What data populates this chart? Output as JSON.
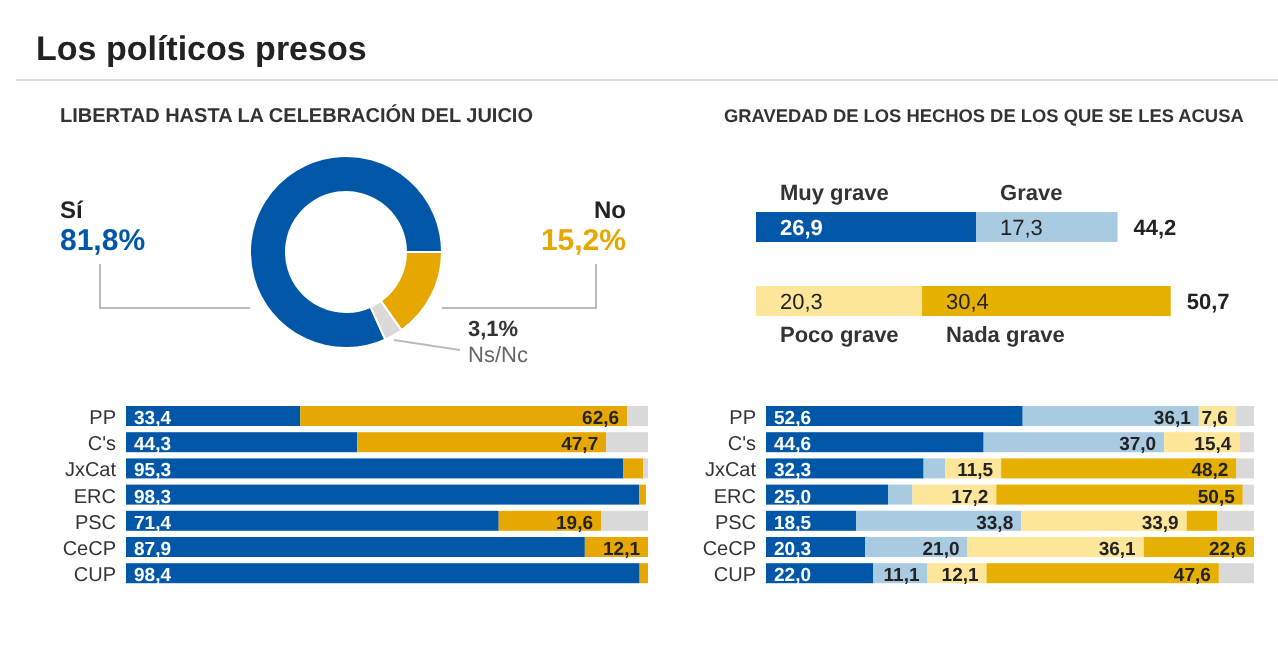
{
  "chart_data": [
    {
      "type": "donut",
      "title": "Los políticos presos",
      "subtitle": "LIBERTAD HASTA LA CELEBRACIÓN DEL JUICIO",
      "categories": [
        "Sí",
        "No",
        "Ns/Nc"
      ],
      "values": [
        81.8,
        15.2,
        3.1
      ],
      "colors": [
        "#0057a8",
        "#e6a800",
        "#d9d9d9"
      ],
      "value_labels": [
        "81,8%",
        "15,2%",
        "3,1%"
      ]
    },
    {
      "type": "bar",
      "orientation": "horizontal",
      "stacked": true,
      "categories": [
        "PP",
        "C's",
        "JxCat",
        "ERC",
        "PSC",
        "CeCP",
        "CUP"
      ],
      "series": [
        {
          "color": "#0057a8",
          "values": [
            33.4,
            44.3,
            95.3,
            98.3,
            71.4,
            87.9,
            98.4
          ],
          "value_labels": [
            "33,4",
            "44,3",
            "95,3",
            "98,3",
            "71,4",
            "87,9",
            "98,4"
          ]
        },
        {
          "color": "#e6a800",
          "values": [
            62.6,
            47.7,
            3.8,
            1.3,
            19.6,
            12.1,
            1.6
          ],
          "value_labels": [
            "62,6",
            "47,7",
            null,
            null,
            "19,6",
            "12,1",
            null
          ]
        },
        {
          "color": "#d9d9d9",
          "values": [
            4.0,
            8.0,
            0.9,
            null,
            9.0,
            0,
            0
          ]
        }
      ]
    },
    {
      "type": "bar",
      "orientation": "horizontal",
      "stacked": true,
      "subtitle": "GRAVEDAD DE LOS HECHOS DE LOS QUE SE LES ACUSA",
      "categories": [
        null,
        null
      ],
      "totals": [
        "44,2",
        "50,7"
      ],
      "series": [
        {
          "name": "Muy grave",
          "color": "#0057a8",
          "values": [
            26.9,
            null
          ],
          "value_labels": [
            "26,9",
            null
          ]
        },
        {
          "name": "Grave",
          "color": "#a8cbe2",
          "values": [
            17.3,
            null
          ],
          "value_labels": [
            "17,3",
            null
          ]
        },
        {
          "name": "Poco grave",
          "color": "#fde69a",
          "values": [
            null,
            20.3
          ],
          "value_labels": [
            null,
            "20,3"
          ]
        },
        {
          "name": "Nada grave",
          "color": "#e6b000",
          "values": [
            null,
            30.4
          ],
          "value_labels": [
            null,
            "30,4"
          ]
        }
      ]
    },
    {
      "type": "bar",
      "orientation": "horizontal",
      "stacked": true,
      "categories": [
        "PP",
        "C's",
        "JxCat",
        "ERC",
        "PSC",
        "CeCP",
        "CUP"
      ],
      "series": [
        {
          "color": "#0057a8",
          "values": [
            52.6,
            44.6,
            32.3,
            25.0,
            18.5,
            20.3,
            22.0
          ],
          "value_labels": [
            "52,6",
            "44,6",
            "32,3",
            "25,0",
            "18,5",
            "20,3",
            "22,0"
          ]
        },
        {
          "color": "#a8cbe2",
          "values": [
            36.1,
            37.0,
            4.4,
            5.0,
            33.8,
            21.0,
            11.1
          ],
          "value_labels": [
            "36,1",
            "37,0",
            null,
            null,
            "33,8",
            "21,0",
            "11,1"
          ]
        },
        {
          "color": "#fde69a",
          "values": [
            7.6,
            15.4,
            11.5,
            17.2,
            33.9,
            36.1,
            12.1
          ],
          "value_labels": [
            "7,6",
            "15,4",
            "11,5",
            "17,2",
            "33,9",
            "36,1",
            "12,1"
          ]
        },
        {
          "color": "#e6b000",
          "values": [
            0,
            0,
            48.2,
            50.5,
            6.3,
            22.6,
            47.6
          ],
          "value_labels": [
            null,
            null,
            "48,2",
            "50,5",
            null,
            "22,6",
            "47,6"
          ]
        },
        {
          "color": "#d9d9d9",
          "values": [
            3.7,
            3.0,
            3.6,
            2.3,
            7.5,
            0,
            7.2
          ]
        }
      ]
    }
  ]
}
